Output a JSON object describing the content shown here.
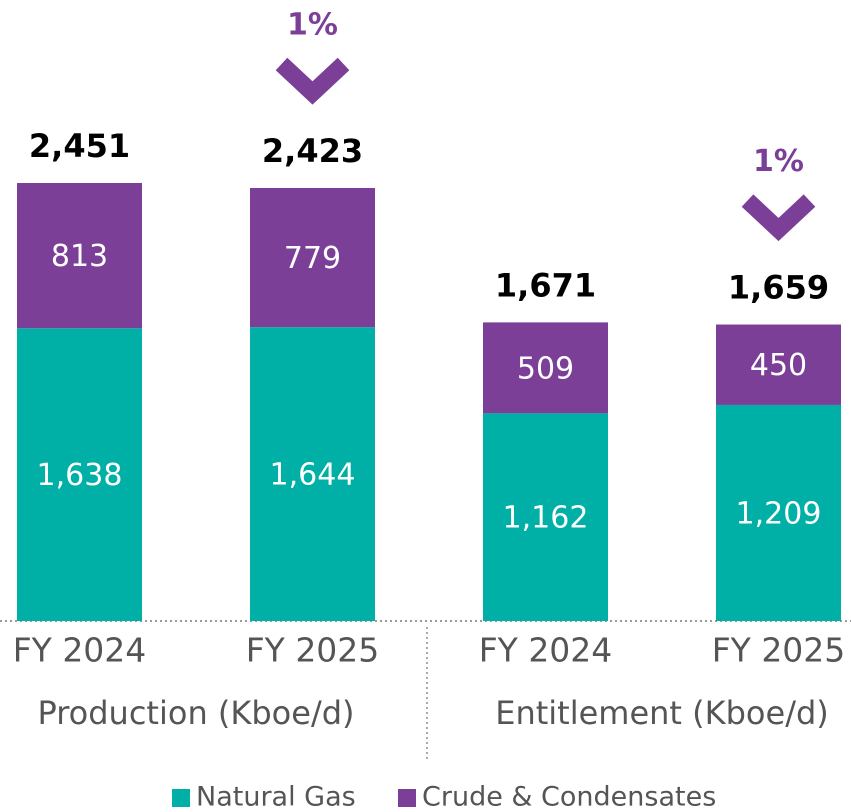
{
  "chart_data": {
    "type": "stacked_bar",
    "categories": [
      "FY 2024",
      "FY 2025",
      "FY 2024",
      "FY 2025"
    ],
    "groups": [
      "Production (Kboe/d)",
      "Entitlement (Kboe/d)"
    ],
    "series": [
      {
        "name": "Natural Gas",
        "color": "#00b0a6",
        "values": [
          1638,
          1644,
          1162,
          1209
        ],
        "value_labels": [
          "1,638",
          "1,644",
          "1,162",
          "1,209"
        ]
      },
      {
        "name": "Crude & Condensates",
        "color": "#7b3f98",
        "values": [
          813,
          779,
          509,
          450
        ],
        "value_labels": [
          "813",
          "779",
          "509",
          "450"
        ]
      }
    ],
    "totals": {
      "values": [
        2451,
        2423,
        1671,
        1659
      ],
      "value_labels": [
        "2,451",
        "2,423",
        "1,671",
        "1,659"
      ]
    },
    "annotations": [
      "1%",
      "1%"
    ],
    "ylim": [
      0,
      3400
    ]
  }
}
